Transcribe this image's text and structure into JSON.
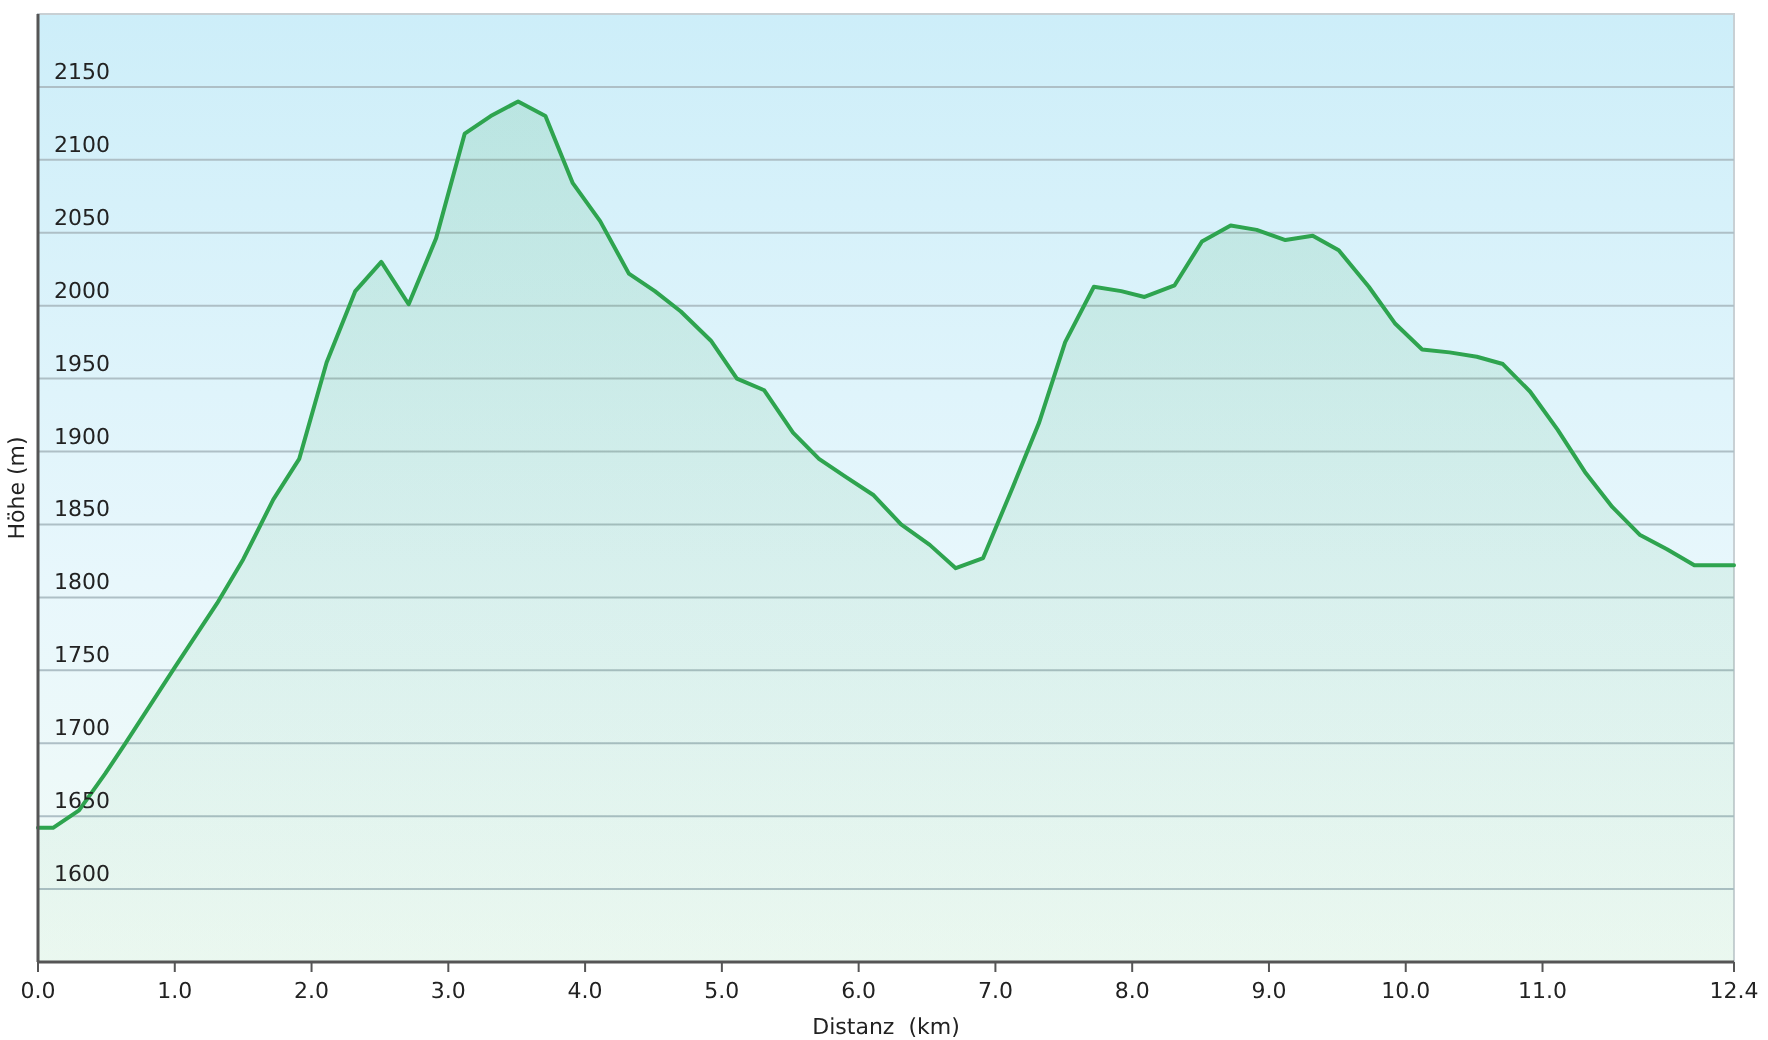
{
  "chart_data": {
    "type": "area",
    "xlabel": "Distanz  (km)",
    "ylabel": "Höhe (m)",
    "x": [
      0,
      0.11,
      0.3,
      0.49,
      0.64,
      1.0,
      1.31,
      1.5,
      1.72,
      1.91,
      2.11,
      2.32,
      2.51,
      2.71,
      2.91,
      3.12,
      3.31,
      3.51,
      3.71,
      3.91,
      4.11,
      4.32,
      4.51,
      4.7,
      4.92,
      5.11,
      5.31,
      5.52,
      5.71,
      5.9,
      6.11,
      6.31,
      6.52,
      6.71,
      6.91,
      7.12,
      7.32,
      7.51,
      7.72,
      7.92,
      8.09,
      8.31,
      8.51,
      8.72,
      8.91,
      9.12,
      9.32,
      9.51,
      9.73,
      9.92,
      10.12,
      10.32,
      10.52,
      10.71,
      10.91,
      11.11,
      11.31,
      11.51,
      11.71,
      11.91,
      12.11,
      12.4
    ],
    "values": [
      1642,
      1642,
      1654,
      1679,
      1700,
      1752,
      1796,
      1826,
      1867,
      1895,
      1961,
      2010,
      2030,
      2001,
      2046,
      2118,
      2130,
      2140,
      2130,
      2084,
      2058,
      2022,
      2010,
      1996,
      1976,
      1950,
      1942,
      1913,
      1895,
      1883,
      1870,
      1850,
      1836,
      1820,
      1827,
      1874,
      1920,
      1975,
      2013,
      2010,
      2006,
      2014,
      2044,
      2055,
      2052,
      2045,
      2048,
      2038,
      2013,
      1988,
      1970,
      1968,
      1965,
      1960,
      1941,
      1915,
      1886,
      1862,
      1843,
      1833,
      1822,
      1822
    ],
    "color": "#2ea44f",
    "xlim": [
      0,
      12.4
    ],
    "xticks": [
      {
        "value": 0,
        "label": "0.0"
      },
      {
        "value": 1,
        "label": "1.0"
      },
      {
        "value": 2,
        "label": "2.0"
      },
      {
        "value": 3,
        "label": "3.0"
      },
      {
        "value": 4,
        "label": "4.0"
      },
      {
        "value": 5,
        "label": "5.0"
      },
      {
        "value": 6,
        "label": "6.0"
      },
      {
        "value": 7,
        "label": "7.0"
      },
      {
        "value": 8,
        "label": "8.0"
      },
      {
        "value": 9,
        "label": "9.0"
      },
      {
        "value": 10,
        "label": "10.0"
      },
      {
        "value": 11,
        "label": "11.0"
      },
      12.4
    ],
    "ylim": [
      1550,
      2200
    ],
    "yticks": [
      1600,
      1650,
      1700,
      1750,
      1800,
      1850,
      1900,
      1950,
      2000,
      2050,
      2100,
      2150
    ],
    "grid": "y"
  }
}
